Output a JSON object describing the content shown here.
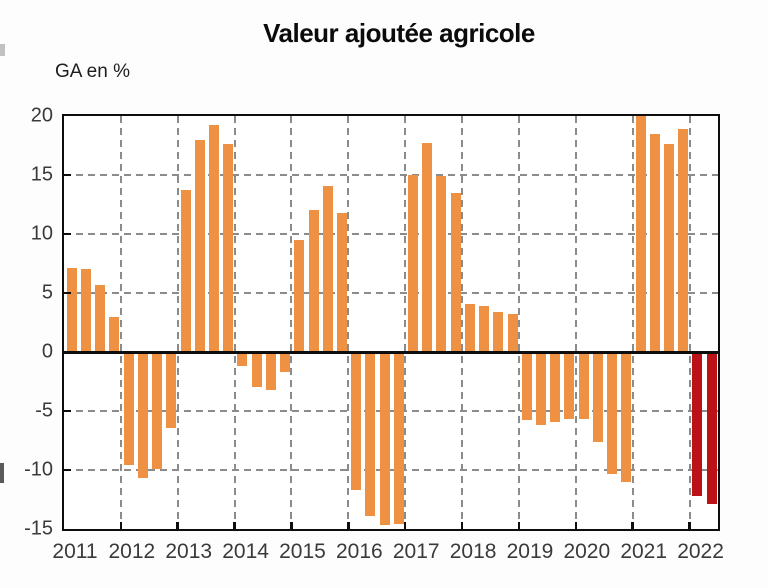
{
  "title": "Valeur ajoutée agricole",
  "y_axis_label": "GA en %",
  "colors": {
    "bar_orange": "#ef9142",
    "bar_dark_red": "#bb1118",
    "grid_gray": "#8b8b8b",
    "axis_black": "#0d0d0d",
    "tick_text": "#3a3a3a"
  },
  "chart_data": {
    "type": "bar",
    "title": "Valeur ajoutée agricole",
    "ylabel": "GA en %",
    "xlabel": "",
    "ylim": [
      -15,
      20
    ],
    "yticks": [
      20,
      15,
      10,
      5,
      0,
      -5,
      -10,
      -15
    ],
    "grid": "dashed gray horizontal lines at 15,10,5,-5,-10 and vertical lines at year boundaries; solid black zero line",
    "legend": "none",
    "x_unit": "quarterly bars grouped by year",
    "years": [
      {
        "label": "2011",
        "values": [
          7.1,
          7.0,
          5.7,
          3.0
        ]
      },
      {
        "label": "2012",
        "values": [
          -9.6,
          -10.7,
          -9.9,
          -6.4
        ]
      },
      {
        "label": "2013",
        "values": [
          13.7,
          18.0,
          19.2,
          17.6
        ]
      },
      {
        "label": "2014",
        "values": [
          -1.2,
          -3.0,
          -3.2,
          -1.7
        ]
      },
      {
        "label": "2015",
        "values": [
          9.5,
          12.0,
          14.1,
          11.8
        ]
      },
      {
        "label": "2016",
        "values": [
          -11.7,
          -13.9,
          -14.7,
          -14.6
        ]
      },
      {
        "label": "2017",
        "values": [
          15.0,
          17.7,
          14.9,
          13.5
        ]
      },
      {
        "label": "2018",
        "values": [
          4.1,
          3.9,
          3.4,
          3.2
        ]
      },
      {
        "label": "2019",
        "values": [
          -5.8,
          -6.2,
          -5.9,
          -5.7
        ]
      },
      {
        "label": "2020",
        "values": [
          -5.7,
          -7.6,
          -10.3,
          -11.0
        ]
      },
      {
        "label": "2021",
        "values": [
          20.4,
          18.5,
          17.6,
          18.9
        ]
      },
      {
        "label": "2022",
        "values": [
          -12.2,
          -12.9
        ],
        "highlight": true
      }
    ]
  }
}
